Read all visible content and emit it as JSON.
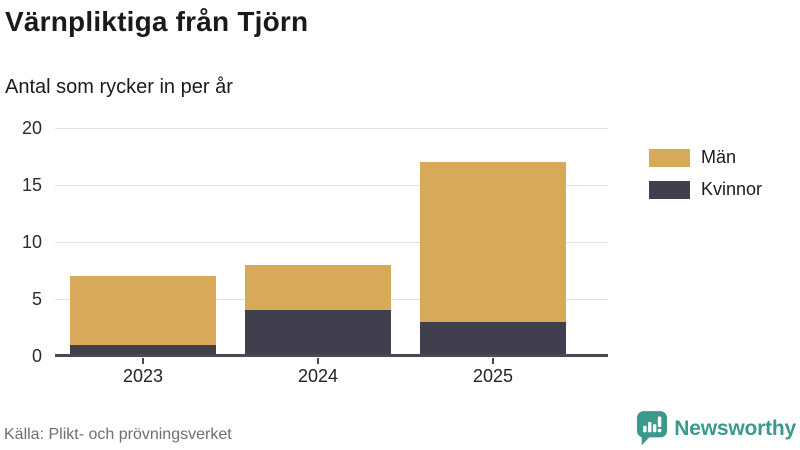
{
  "title": "Värnpliktiga från Tjörn",
  "subtitle": "Antal som rycker in per år",
  "source": "Källa: Plikt- och prövningsverket",
  "logo": {
    "text": "Newsworthy",
    "color": "#3b9a8b"
  },
  "colors": {
    "man": "#d8a958",
    "kvinnor": "#413f4e",
    "axis": "#4a4952",
    "grid": "#e1e1e1",
    "source_text": "#6f6f6f"
  },
  "legend": [
    {
      "label": "Män",
      "color": "#d8a958"
    },
    {
      "label": "Kvinnor",
      "color": "#413f4e"
    }
  ],
  "chart_data": {
    "type": "bar",
    "stacked": true,
    "title": "Värnpliktiga från Tjörn",
    "subtitle": "Antal som rycker in per år",
    "categories": [
      "2023",
      "2024",
      "2025"
    ],
    "series": [
      {
        "name": "Män",
        "color": "#d8a958",
        "values": [
          6,
          4,
          14
        ]
      },
      {
        "name": "Kvinnor",
        "color": "#413f4e",
        "values": [
          1,
          4,
          3
        ]
      }
    ],
    "stack_bottom_to_top": [
      "Kvinnor",
      "Män"
    ],
    "totals": [
      7,
      8,
      17
    ],
    "xlabel": "",
    "ylabel": "",
    "ylim": [
      0,
      20
    ],
    "yticks": [
      0,
      5,
      10,
      15,
      20
    ],
    "grid": true,
    "legend_position": "right"
  }
}
